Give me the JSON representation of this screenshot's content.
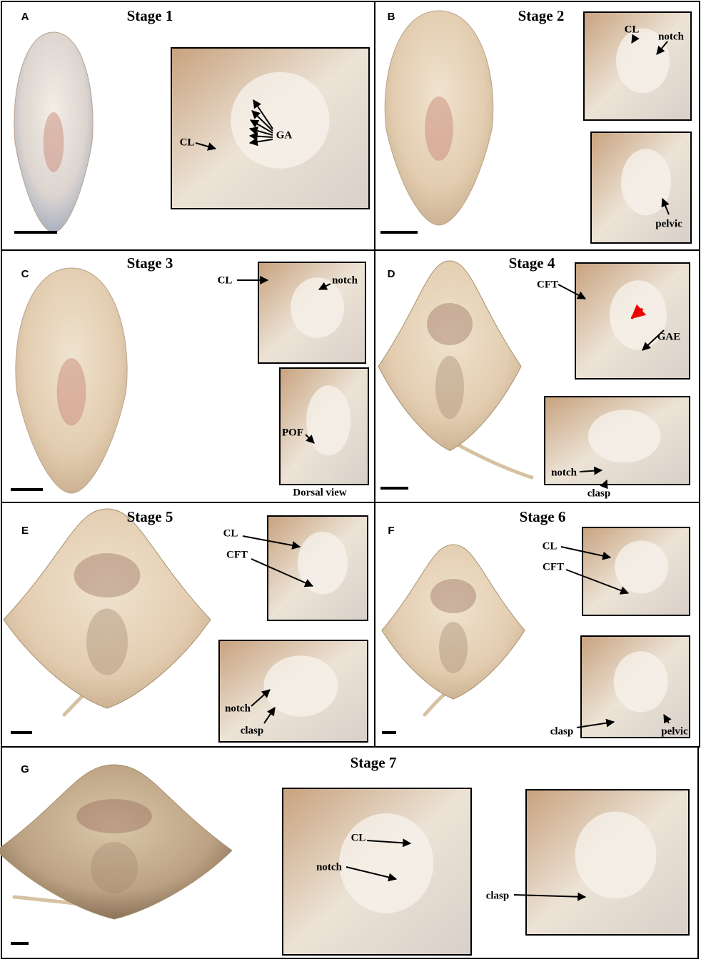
{
  "panels": [
    {
      "letter": "A",
      "title": "Stage 1",
      "annotations": [
        "CL",
        "GA"
      ]
    },
    {
      "letter": "B",
      "title": "Stage 2",
      "annotations": [
        "CL",
        "notch",
        "pelvic"
      ]
    },
    {
      "letter": "C",
      "title": "Stage 3",
      "annotations": [
        "CL",
        "notch",
        "POF",
        "Dorsal view"
      ]
    },
    {
      "letter": "D",
      "title": "Stage 4",
      "annotations": [
        "CFT",
        "GAE",
        "notch",
        "clasp"
      ]
    },
    {
      "letter": "E",
      "title": "Stage 5",
      "annotations": [
        "CL",
        "CFT",
        "notch",
        "clasp"
      ]
    },
    {
      "letter": "F",
      "title": "Stage 6",
      "annotations": [
        "CL",
        "CFT",
        "clasp",
        "pelvic"
      ]
    },
    {
      "letter": "G",
      "title": "Stage 7",
      "annotations": [
        "CL",
        "notch",
        "clasp"
      ]
    }
  ]
}
